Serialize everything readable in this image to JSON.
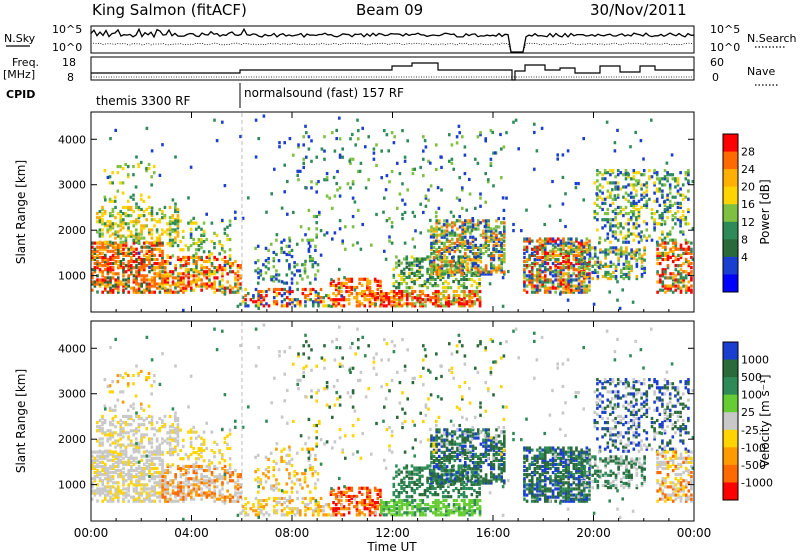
{
  "header": {
    "station": "King Salmon (fitACF)",
    "beam": "Beam 09",
    "date": "30/Nov/2011"
  },
  "top_panels": {
    "nsky_label": "N.Sky",
    "nsky_ticks": [
      "10^5",
      "10^0"
    ],
    "nsearch_label": "N.Search",
    "nsearch_ticks": [
      "10^5",
      "10^0"
    ],
    "freq_label": "Freq.",
    "freq_unit": "[MHz]",
    "freq_ticks": [
      "18",
      "8"
    ],
    "nave_label": "Nave",
    "nave_ticks": [
      "60",
      "0"
    ],
    "cpid_label": "CPID",
    "cpid_segments": [
      {
        "text": "themis 3300 RF",
        "start_hour": 0.0
      },
      {
        "text": "normalsound (fast) 157 RF",
        "start_hour": 6.0
      }
    ]
  },
  "chart_data": [
    {
      "type": "heatmap",
      "name": "power",
      "ylabel": "Slant Range [km]",
      "yticks": [
        1000,
        2000,
        3000,
        4000
      ],
      "ylim": [
        200,
        4600
      ],
      "xlim_hours": [
        0,
        24
      ],
      "colorbar_label": "Power [dB]",
      "colorbar_ticks": [
        "28",
        "24",
        "20",
        "16",
        "12",
        "8",
        "4"
      ],
      "colorbar_colors": [
        "#ff0000",
        "#ff6a00",
        "#ffb000",
        "#ffd400",
        "#7fc040",
        "#2e8b57",
        "#2a6a3a",
        "#1a3fd0",
        "#0000ff"
      ]
    },
    {
      "type": "heatmap",
      "name": "velocity",
      "ylabel": "Slant Range [km]",
      "yticks": [
        1000,
        2000,
        3000,
        4000
      ],
      "ylim": [
        200,
        4600
      ],
      "xlim_hours": [
        0,
        24
      ],
      "colorbar_label": "Velocity [m s⁻¹]",
      "colorbar_ticks": [
        "1000",
        "500",
        "100",
        "25",
        "-25",
        "-100",
        "-500",
        "-1000"
      ],
      "colorbar_colors": [
        "#1a3fd0",
        "#2a6a3a",
        "#2e8b57",
        "#66cc33",
        "#c8c8c8",
        "#ffd400",
        "#ff9a00",
        "#ff6a00",
        "#ff0000"
      ]
    }
  ],
  "xaxis": {
    "ticks": [
      "00:00",
      "04:00",
      "08:00",
      "12:00",
      "16:00",
      "20:00",
      "00:00"
    ],
    "label": "Time UT"
  }
}
